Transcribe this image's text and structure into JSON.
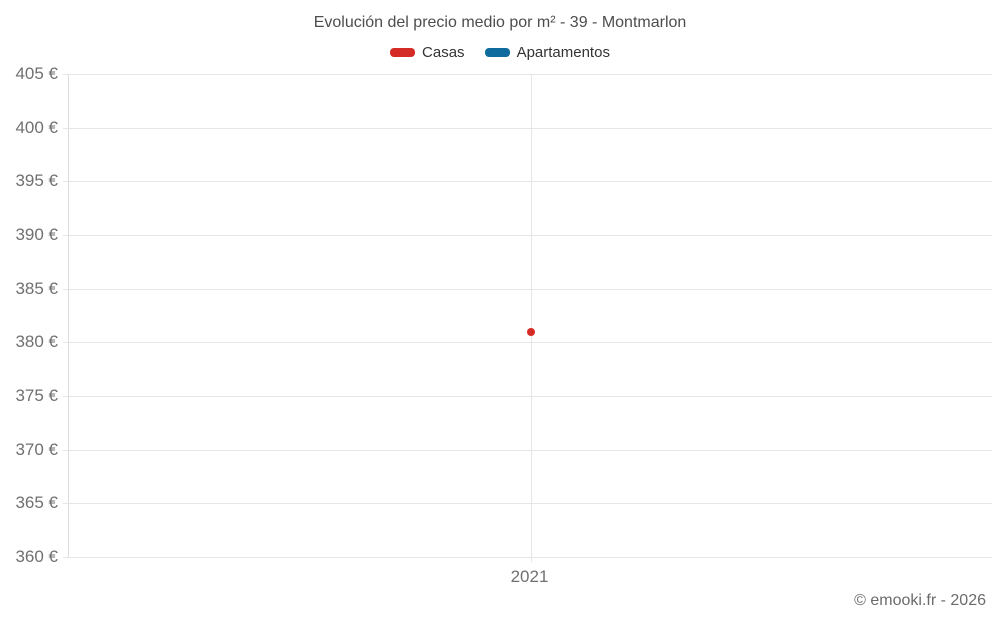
{
  "chart_data": {
    "type": "scatter",
    "title": "Evolución del precio medio por m² - 39 - Montmarlon",
    "xlabel": "",
    "ylabel": "",
    "x_categories": [
      "2021"
    ],
    "series": [
      {
        "name": "Casas",
        "color": "#d42b26",
        "points": [
          {
            "x": "2021",
            "y": 381
          }
        ]
      },
      {
        "name": "Apartamentos",
        "color": "#0f6b9e",
        "points": []
      }
    ],
    "ylim": [
      360,
      405
    ],
    "ytick_step": 5,
    "yticks": [
      {
        "value": 405,
        "label": "405 €"
      },
      {
        "value": 400,
        "label": "400 €"
      },
      {
        "value": 395,
        "label": "395 €"
      },
      {
        "value": 390,
        "label": "390 €"
      },
      {
        "value": 385,
        "label": "385 €"
      },
      {
        "value": 380,
        "label": "380 €"
      },
      {
        "value": 375,
        "label": "375 €"
      },
      {
        "value": 370,
        "label": "370 €"
      },
      {
        "value": 365,
        "label": "365 €"
      },
      {
        "value": 360,
        "label": "360 €"
      }
    ],
    "grid": true,
    "legend_position": "top",
    "colors": {
      "gridline": "#e6e6e6",
      "axis_line": "#dcdcdc",
      "axis_label": "#707070",
      "title": "#4d4d4d",
      "legend_text": "#333333"
    }
  },
  "footer": {
    "copyright": "© emooki.fr - 2026"
  }
}
